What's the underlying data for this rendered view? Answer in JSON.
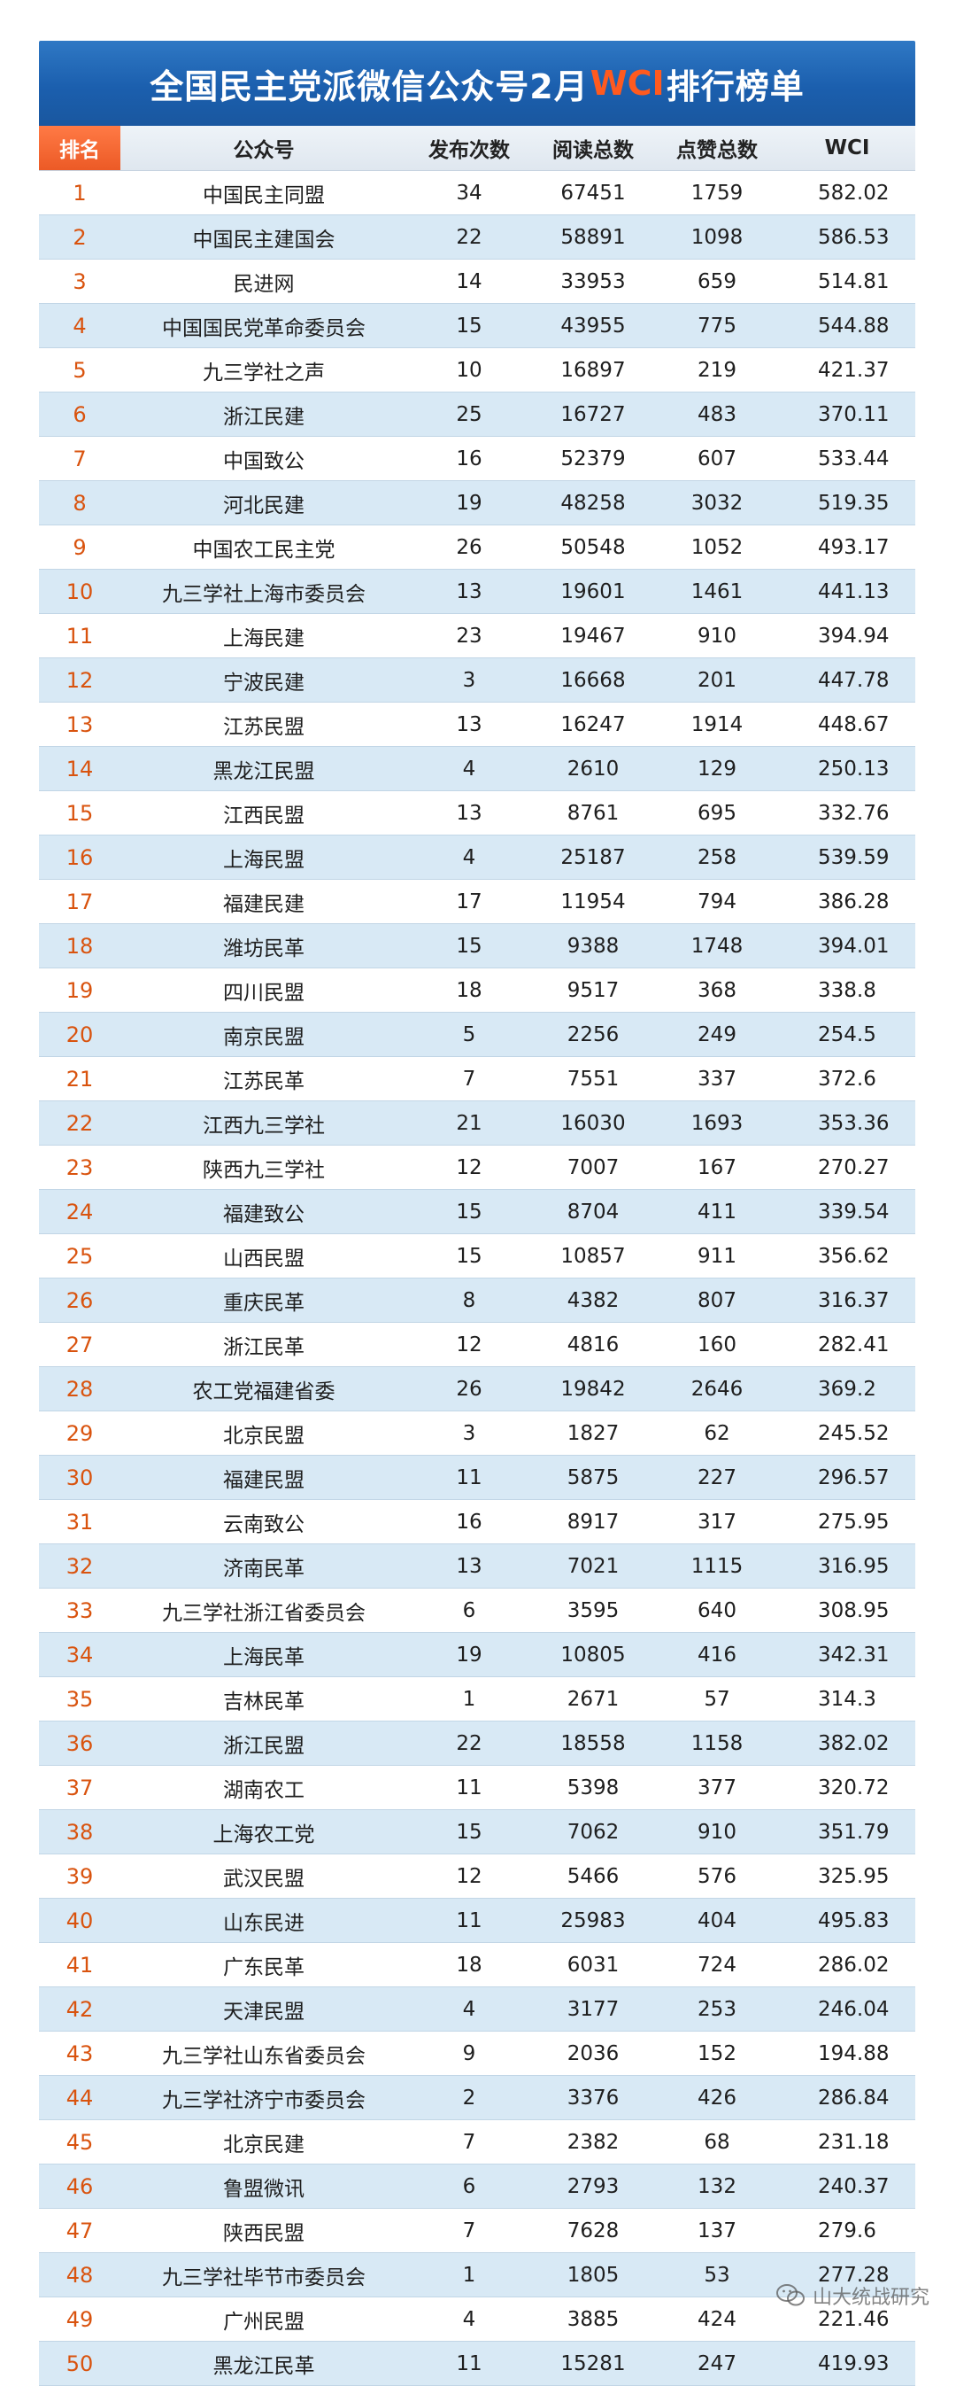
{
  "title": {
    "before": "全国民主党派微信公众号2月",
    "highlight": "WCI",
    "after": "排行榜单"
  },
  "headers": {
    "rank": "排名",
    "name": "公众号",
    "publish": "发布次数",
    "reads": "阅读总数",
    "likes": "点赞总数",
    "wci": "WCI"
  },
  "rows": [
    {
      "rank": "1",
      "name": "中国民主同盟",
      "publish": "34",
      "reads": "67451",
      "likes": "1759",
      "wci": "582.02"
    },
    {
      "rank": "2",
      "name": "中国民主建国会",
      "publish": "22",
      "reads": "58891",
      "likes": "1098",
      "wci": "586.53"
    },
    {
      "rank": "3",
      "name": "民进网",
      "publish": "14",
      "reads": "33953",
      "likes": "659",
      "wci": "514.81"
    },
    {
      "rank": "4",
      "name": "中国国民党革命委员会",
      "publish": "15",
      "reads": "43955",
      "likes": "775",
      "wci": "544.88"
    },
    {
      "rank": "5",
      "name": "九三学社之声",
      "publish": "10",
      "reads": "16897",
      "likes": "219",
      "wci": "421.37"
    },
    {
      "rank": "6",
      "name": "浙江民建",
      "publish": "25",
      "reads": "16727",
      "likes": "483",
      "wci": "370.11"
    },
    {
      "rank": "7",
      "name": "中国致公",
      "publish": "16",
      "reads": "52379",
      "likes": "607",
      "wci": "533.44"
    },
    {
      "rank": "8",
      "name": "河北民建",
      "publish": "19",
      "reads": "48258",
      "likes": "3032",
      "wci": "519.35"
    },
    {
      "rank": "9",
      "name": "中国农工民主党",
      "publish": "26",
      "reads": "50548",
      "likes": "1052",
      "wci": "493.17"
    },
    {
      "rank": "10",
      "name": "九三学社上海市委员会",
      "publish": "13",
      "reads": "19601",
      "likes": "1461",
      "wci": "441.13"
    },
    {
      "rank": "11",
      "name": "上海民建",
      "publish": "23",
      "reads": "19467",
      "likes": "910",
      "wci": "394.94"
    },
    {
      "rank": "12",
      "name": "宁波民建",
      "publish": "3",
      "reads": "16668",
      "likes": "201",
      "wci": "447.78"
    },
    {
      "rank": "13",
      "name": "江苏民盟",
      "publish": "13",
      "reads": "16247",
      "likes": "1914",
      "wci": "448.67"
    },
    {
      "rank": "14",
      "name": "黑龙江民盟",
      "publish": "4",
      "reads": "2610",
      "likes": "129",
      "wci": "250.13"
    },
    {
      "rank": "15",
      "name": "江西民盟",
      "publish": "13",
      "reads": "8761",
      "likes": "695",
      "wci": "332.76"
    },
    {
      "rank": "16",
      "name": "上海民盟",
      "publish": "4",
      "reads": "25187",
      "likes": "258",
      "wci": "539.59"
    },
    {
      "rank": "17",
      "name": "福建民建",
      "publish": "17",
      "reads": "11954",
      "likes": "794",
      "wci": "386.28"
    },
    {
      "rank": "18",
      "name": "潍坊民革",
      "publish": "15",
      "reads": "9388",
      "likes": "1748",
      "wci": "394.01"
    },
    {
      "rank": "19",
      "name": "四川民盟",
      "publish": "18",
      "reads": "9517",
      "likes": "368",
      "wci": "338.8"
    },
    {
      "rank": "20",
      "name": "南京民盟",
      "publish": "5",
      "reads": "2256",
      "likes": "249",
      "wci": "254.5"
    },
    {
      "rank": "21",
      "name": "江苏民革",
      "publish": "7",
      "reads": "7551",
      "likes": "337",
      "wci": "372.6"
    },
    {
      "rank": "22",
      "name": "江西九三学社",
      "publish": "21",
      "reads": "16030",
      "likes": "1693",
      "wci": "353.36"
    },
    {
      "rank": "23",
      "name": "陕西九三学社",
      "publish": "12",
      "reads": "7007",
      "likes": "167",
      "wci": "270.27"
    },
    {
      "rank": "24",
      "name": "福建致公",
      "publish": "15",
      "reads": "8704",
      "likes": "411",
      "wci": "339.54"
    },
    {
      "rank": "25",
      "name": "山西民盟",
      "publish": "15",
      "reads": "10857",
      "likes": "911",
      "wci": "356.62"
    },
    {
      "rank": "26",
      "name": "重庆民革",
      "publish": "8",
      "reads": "4382",
      "likes": "807",
      "wci": "316.37"
    },
    {
      "rank": "27",
      "name": "浙江民革",
      "publish": "12",
      "reads": "4816",
      "likes": "160",
      "wci": "282.41"
    },
    {
      "rank": "28",
      "name": "农工党福建省委",
      "publish": "26",
      "reads": "19842",
      "likes": "2646",
      "wci": "369.2"
    },
    {
      "rank": "29",
      "name": "北京民盟",
      "publish": "3",
      "reads": "1827",
      "likes": "62",
      "wci": "245.52"
    },
    {
      "rank": "30",
      "name": "福建民盟",
      "publish": "11",
      "reads": "5875",
      "likes": "227",
      "wci": "296.57"
    },
    {
      "rank": "31",
      "name": "云南致公",
      "publish": "16",
      "reads": "8917",
      "likes": "317",
      "wci": "275.95"
    },
    {
      "rank": "32",
      "name": "济南民革",
      "publish": "13",
      "reads": "7021",
      "likes": "1115",
      "wci": "316.95"
    },
    {
      "rank": "33",
      "name": "九三学社浙江省委员会",
      "publish": "6",
      "reads": "3595",
      "likes": "640",
      "wci": "308.95"
    },
    {
      "rank": "34",
      "name": "上海民革",
      "publish": "19",
      "reads": "10805",
      "likes": "416",
      "wci": "342.31"
    },
    {
      "rank": "35",
      "name": "吉林民革",
      "publish": "1",
      "reads": "2671",
      "likes": "57",
      "wci": "314.3"
    },
    {
      "rank": "36",
      "name": "浙江民盟",
      "publish": "22",
      "reads": "18558",
      "likes": "1158",
      "wci": "382.02"
    },
    {
      "rank": "37",
      "name": "湖南农工",
      "publish": "11",
      "reads": "5398",
      "likes": "377",
      "wci": "320.72"
    },
    {
      "rank": "38",
      "name": "上海农工党",
      "publish": "15",
      "reads": "7062",
      "likes": "910",
      "wci": "351.79"
    },
    {
      "rank": "39",
      "name": "武汉民盟",
      "publish": "12",
      "reads": "5466",
      "likes": "576",
      "wci": "325.95"
    },
    {
      "rank": "40",
      "name": "山东民进",
      "publish": "11",
      "reads": "25983",
      "likes": "404",
      "wci": "495.83"
    },
    {
      "rank": "41",
      "name": "广东民革",
      "publish": "18",
      "reads": "6031",
      "likes": "724",
      "wci": "286.02"
    },
    {
      "rank": "42",
      "name": "天津民盟",
      "publish": "4",
      "reads": "3177",
      "likes": "253",
      "wci": "246.04"
    },
    {
      "rank": "43",
      "name": "九三学社山东省委员会",
      "publish": "9",
      "reads": "2036",
      "likes": "152",
      "wci": "194.88"
    },
    {
      "rank": "44",
      "name": "九三学社济宁市委员会",
      "publish": "2",
      "reads": "3376",
      "likes": "426",
      "wci": "286.84"
    },
    {
      "rank": "45",
      "name": "北京民建",
      "publish": "7",
      "reads": "2382",
      "likes": "68",
      "wci": "231.18"
    },
    {
      "rank": "46",
      "name": "鲁盟微讯",
      "publish": "6",
      "reads": "2793",
      "likes": "132",
      "wci": "240.37"
    },
    {
      "rank": "47",
      "name": "陕西民盟",
      "publish": "7",
      "reads": "7628",
      "likes": "137",
      "wci": "279.6"
    },
    {
      "rank": "48",
      "name": "九三学社毕节市委员会",
      "publish": "1",
      "reads": "1805",
      "likes": "53",
      "wci": "277.28"
    },
    {
      "rank": "49",
      "name": "广州民盟",
      "publish": "4",
      "reads": "3885",
      "likes": "424",
      "wci": "221.46"
    },
    {
      "rank": "50",
      "name": "黑龙江民革",
      "publish": "11",
      "reads": "15281",
      "likes": "247",
      "wci": "419.93"
    }
  ],
  "watermark": {
    "text": "山大统战研究",
    "icon": "wechat-icon"
  },
  "colors": {
    "banner": "#1b5fae",
    "highlight": "#ff5a1f",
    "rank_header": "#ec5a26",
    "rank_text": "#d9530e",
    "stripe": "#d8e9f5"
  }
}
